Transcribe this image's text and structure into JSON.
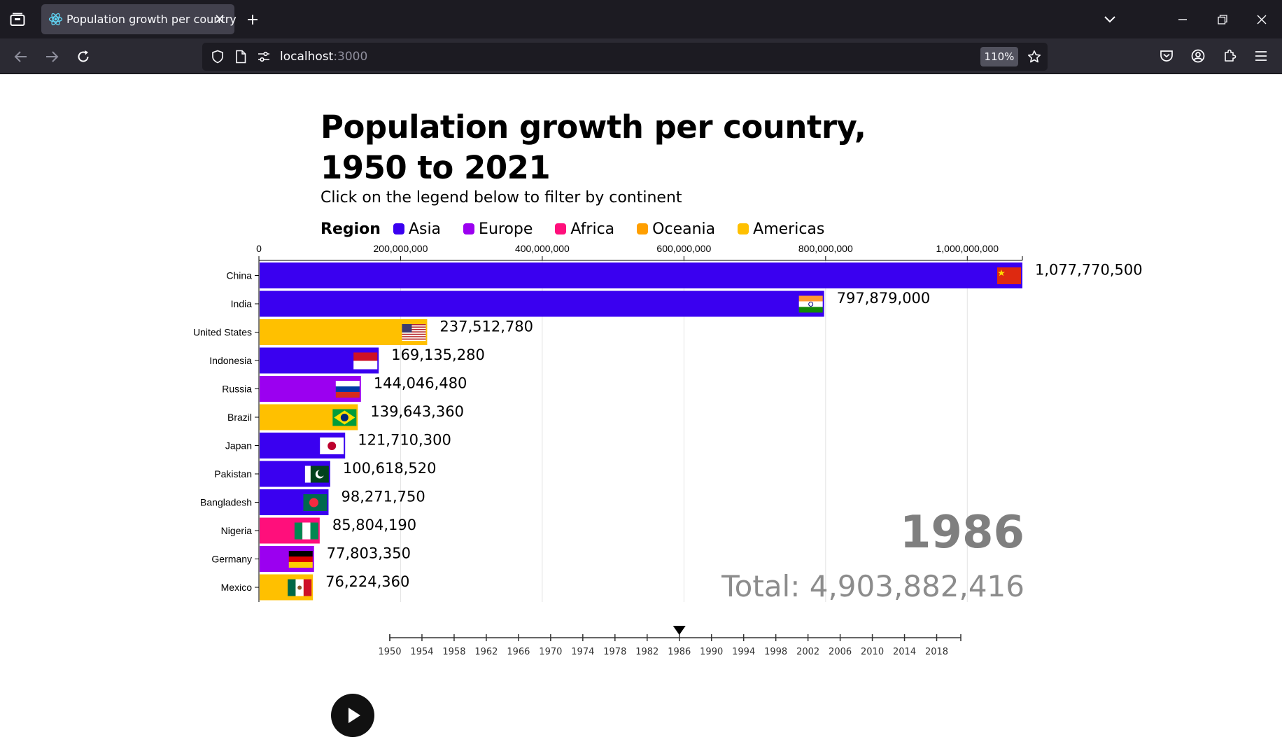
{
  "browser": {
    "tab_title": "Population growth per country",
    "url_host": "localhost",
    "url_port": ":3000",
    "zoom": "110%"
  },
  "page": {
    "title": "Population growth per country, 1950 to 2021",
    "subtitle": "Click on the legend below to filter by continent",
    "legend_title": "Region",
    "legend": [
      {
        "label": "Asia",
        "color": "#3a00f0"
      },
      {
        "label": "Europe",
        "color": "#9b00f0"
      },
      {
        "label": "Africa",
        "color": "#ff0f7b"
      },
      {
        "label": "Oceania",
        "color": "#ff9f00"
      },
      {
        "label": "Americas",
        "color": "#ffc000"
      }
    ],
    "year": "1986",
    "total": "Total: 4,903,882,416"
  },
  "chart_data": {
    "type": "bar",
    "orientation": "horizontal",
    "xlim": [
      0,
      1077770500
    ],
    "x_ticks": [
      0,
      200000000,
      400000000,
      600000000,
      800000000,
      1000000000
    ],
    "x_tick_labels": [
      "0",
      "200,000,000",
      "400,000,000",
      "600,000,000",
      "800,000,000",
      "1,000,000,000"
    ],
    "categories": [
      "China",
      "India",
      "United States",
      "Indonesia",
      "Russia",
      "Brazil",
      "Japan",
      "Pakistan",
      "Bangladesh",
      "Nigeria",
      "Germany",
      "Mexico"
    ],
    "values": [
      1077770500,
      797879000,
      237512780,
      169135280,
      144046480,
      139643360,
      121710300,
      100618520,
      98271750,
      85804190,
      77803350,
      76224360
    ],
    "value_labels": [
      "1,077,770,500",
      "797,879,000",
      "237,512,780",
      "169,135,280",
      "144,046,480",
      "139,643,360",
      "121,710,300",
      "100,618,520",
      "98,271,750",
      "85,804,190",
      "77,803,350",
      "76,224,360"
    ],
    "regions": [
      "Asia",
      "Asia",
      "Americas",
      "Asia",
      "Europe",
      "Americas",
      "Asia",
      "Asia",
      "Asia",
      "Africa",
      "Europe",
      "Americas"
    ],
    "flags": [
      "china-flag",
      "india-flag",
      "usa-flag",
      "indonesia-flag",
      "russia-flag",
      "brazil-flag",
      "japan-flag",
      "pakistan-flag",
      "bangladesh-flag",
      "nigeria-flag",
      "germany-flag",
      "mexico-flag"
    ],
    "grid": true
  },
  "timeline": {
    "years": [
      "1950",
      "1954",
      "1958",
      "1962",
      "1966",
      "1970",
      "1974",
      "1978",
      "1982",
      "1986",
      "1990",
      "1994",
      "1998",
      "2002",
      "2006",
      "2010",
      "2014",
      "2018"
    ],
    "start": 1950,
    "end": 2021,
    "current": 1986
  }
}
